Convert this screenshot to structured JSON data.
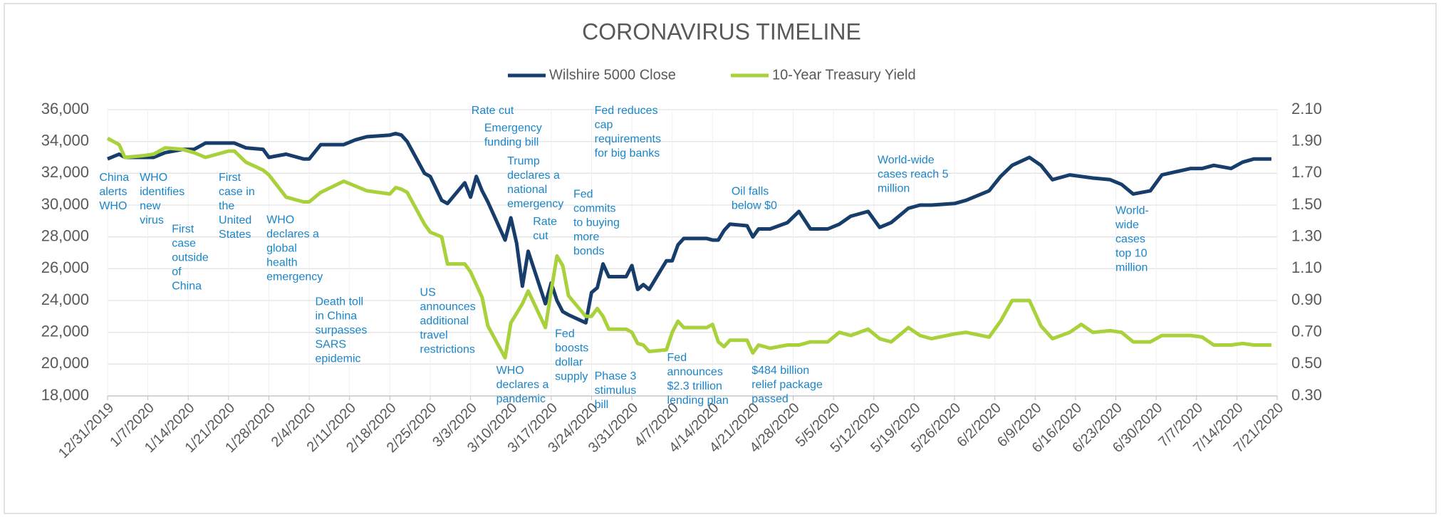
{
  "chart_data": {
    "type": "line",
    "title": "CORONAVIRUS TIMELINE",
    "legend": "top",
    "grid": true,
    "x": [
      "12/31/2019",
      "1/2/2020",
      "1/3/2020",
      "1/6/2020",
      "1/8/2020",
      "1/10/2020",
      "1/13/2020",
      "1/15/2020",
      "1/17/2020",
      "1/21/2020",
      "1/22/2020",
      "1/24/2020",
      "1/27/2020",
      "1/28/2020",
      "1/31/2020",
      "2/3/2020",
      "2/4/2020",
      "2/6/2020",
      "2/10/2020",
      "2/12/2020",
      "2/14/2020",
      "2/18/2020",
      "2/19/2020",
      "2/20/2020",
      "2/21/2020",
      "2/24/2020",
      "2/25/2020",
      "2/27/2020",
      "2/28/2020",
      "3/2/2020",
      "3/3/2020",
      "3/4/2020",
      "3/5/2020",
      "3/6/2020",
      "3/9/2020",
      "3/10/2020",
      "3/11/2020",
      "3/12/2020",
      "3/13/2020",
      "3/16/2020",
      "3/17/2020",
      "3/18/2020",
      "3/19/2020",
      "3/20/2020",
      "3/23/2020",
      "3/24/2020",
      "3/25/2020",
      "3/26/2020",
      "3/27/2020",
      "3/30/2020",
      "3/31/2020",
      "4/1/2020",
      "4/2/2020",
      "4/3/2020",
      "4/6/2020",
      "4/7/2020",
      "4/8/2020",
      "4/9/2020",
      "4/13/2020",
      "4/14/2020",
      "4/15/2020",
      "4/16/2020",
      "4/17/2020",
      "4/20/2020",
      "4/21/2020",
      "4/22/2020",
      "4/24/2020",
      "4/27/2020",
      "4/29/2020",
      "5/1/2020",
      "5/4/2020",
      "5/6/2020",
      "5/8/2020",
      "5/11/2020",
      "5/13/2020",
      "5/15/2020",
      "5/18/2020",
      "5/20/2020",
      "5/22/2020",
      "5/26/2020",
      "5/28/2020",
      "6/1/2020",
      "6/3/2020",
      "6/5/2020",
      "6/8/2020",
      "6/10/2020",
      "6/12/2020",
      "6/15/2020",
      "6/17/2020",
      "6/19/2020",
      "6/22/2020",
      "6/24/2020",
      "6/26/2020",
      "6/29/2020",
      "7/1/2020",
      "7/6/2020",
      "7/8/2020",
      "7/10/2020",
      "7/13/2020",
      "7/15/2020",
      "7/17/2020",
      "7/20/2020"
    ],
    "xlim": [
      "12/31/2019",
      "7/21/2020"
    ],
    "xticks": [
      "12/31/2019",
      "1/7/2020",
      "1/14/2020",
      "1/21/2020",
      "1/28/2020",
      "2/4/2020",
      "2/11/2020",
      "2/18/2020",
      "2/25/2020",
      "3/3/2020",
      "3/10/2020",
      "3/17/2020",
      "3/24/2020",
      "3/31/2020",
      "4/7/2020",
      "4/14/2020",
      "4/21/2020",
      "4/28/2020",
      "5/5/2020",
      "5/12/2020",
      "5/19/2020",
      "5/26/2020",
      "6/2/2020",
      "6/9/2020",
      "6/16/2020",
      "6/23/2020",
      "6/30/2020",
      "7/7/2020",
      "7/14/2020",
      "7/21/2020"
    ],
    "ylim": [
      18000,
      36000
    ],
    "yticks": [
      {
        "value": 18000,
        "label": "18,000"
      },
      {
        "value": 20000,
        "label": "20,000"
      },
      {
        "value": 22000,
        "label": "22,000"
      },
      {
        "value": 24000,
        "label": "24,000"
      },
      {
        "value": 26000,
        "label": "26,000"
      },
      {
        "value": 28000,
        "label": "28,000"
      },
      {
        "value": 30000,
        "label": "30,000"
      },
      {
        "value": 32000,
        "label": "32,000"
      },
      {
        "value": 34000,
        "label": "34,000"
      },
      {
        "value": 36000,
        "label": "36,000"
      }
    ],
    "y2lim": [
      0.3,
      2.1
    ],
    "y2ticks": [
      {
        "value": 0.3,
        "label": "0.30"
      },
      {
        "value": 0.5,
        "label": "0.50"
      },
      {
        "value": 0.7,
        "label": "0.70"
      },
      {
        "value": 0.9,
        "label": "0.90"
      },
      {
        "value": 1.1,
        "label": "1.10"
      },
      {
        "value": 1.3,
        "label": "1.30"
      },
      {
        "value": 1.5,
        "label": "1.50"
      },
      {
        "value": 1.7,
        "label": "1.70"
      },
      {
        "value": 1.9,
        "label": "1.90"
      },
      {
        "value": 2.1,
        "label": "2.10"
      }
    ],
    "series": [
      {
        "name": "Wilshire 5000 Close",
        "color": "#173d6b",
        "values": [
          32900,
          33200,
          33000,
          33000,
          33000,
          33300,
          33500,
          33500,
          33900,
          33900,
          33900,
          33600,
          33500,
          33000,
          33200,
          32900,
          32900,
          33800,
          33800,
          34100,
          34300,
          34400,
          34500,
          34400,
          34000,
          32000,
          31800,
          30300,
          30100,
          31400,
          30500,
          31800,
          30900,
          30200,
          27800,
          29200,
          27600,
          24900,
          27100,
          23800,
          25100,
          24000,
          23300,
          23100,
          22600,
          24500,
          24800,
          26300,
          25500,
          25500,
          26200,
          24700,
          25000,
          24700,
          26500,
          26500,
          27500,
          27900,
          27900,
          27800,
          27800,
          28400,
          28800,
          28700,
          28000,
          28500,
          28500,
          28900,
          29600,
          28500,
          28500,
          28800,
          29300,
          29600,
          28600,
          28900,
          29800,
          30000,
          30000,
          30100,
          30300,
          30900,
          31800,
          32500,
          33000,
          32500,
          31600,
          31900,
          31800,
          31700,
          31600,
          31300,
          30700,
          30900,
          31900,
          32300,
          32300,
          32500,
          32300,
          32700,
          32900,
          32900
        ]
      },
      {
        "name": "10-Year Treasury Yield",
        "color": "#a9d13b",
        "axis": "y2",
        "values": [
          1.92,
          1.88,
          1.8,
          1.81,
          1.82,
          1.86,
          1.85,
          1.83,
          1.8,
          1.84,
          1.84,
          1.77,
          1.72,
          1.69,
          1.55,
          1.52,
          1.52,
          1.58,
          1.65,
          1.62,
          1.59,
          1.57,
          1.61,
          1.6,
          1.58,
          1.38,
          1.33,
          1.3,
          1.13,
          1.13,
          1.08,
          1.0,
          0.92,
          0.74,
          0.54,
          0.76,
          0.82,
          0.88,
          0.96,
          0.73,
          0.96,
          1.18,
          1.12,
          0.93,
          0.8,
          0.8,
          0.85,
          0.8,
          0.72,
          0.72,
          0.7,
          0.63,
          0.62,
          0.58,
          0.59,
          0.7,
          0.77,
          0.73,
          0.73,
          0.75,
          0.64,
          0.61,
          0.65,
          0.65,
          0.57,
          0.62,
          0.6,
          0.62,
          0.62,
          0.64,
          0.64,
          0.7,
          0.68,
          0.72,
          0.66,
          0.64,
          0.73,
          0.68,
          0.66,
          0.69,
          0.7,
          0.67,
          0.77,
          0.9,
          0.9,
          0.74,
          0.66,
          0.7,
          0.75,
          0.7,
          0.71,
          0.7,
          0.64,
          0.64,
          0.68,
          0.68,
          0.67,
          0.62,
          0.62,
          0.63,
          0.62,
          0.62
        ]
      }
    ],
    "annotations": [
      [
        "China",
        "alerts",
        "WHO"
      ],
      [
        "WHO",
        "identifies",
        "new",
        "virus"
      ],
      [
        "First",
        "case",
        "outside",
        "of",
        "China"
      ],
      [
        "First",
        "case in",
        "the",
        "United",
        "States"
      ],
      [
        "WHO",
        "declares a",
        "global",
        "health",
        "emergency"
      ],
      [
        "Death toll",
        "in China",
        "surpasses",
        "SARS",
        "epidemic"
      ],
      [
        "US",
        "announces",
        "additional",
        "travel",
        "restrictions"
      ],
      [
        "Rate cut"
      ],
      [
        "Emergency",
        "funding bill"
      ],
      [
        "Trump",
        "declares a",
        "national",
        "emergency"
      ],
      [
        "Rate",
        "cut"
      ],
      [
        "WHO",
        "declares a",
        "pandemic"
      ],
      [
        "Fed",
        "boosts",
        "dollar",
        "supply"
      ],
      [
        "Fed",
        "commits",
        "to buying",
        "more",
        "bonds"
      ],
      [
        "Phase 3",
        "stimulus",
        "bill"
      ],
      [
        "Fed reduces",
        "cap",
        "requirements",
        "for big banks"
      ],
      [
        "Fed",
        "announces",
        "$2.3 trillion",
        "lending plan"
      ],
      [
        "Oil falls",
        "below $0"
      ],
      [
        "$484 billion",
        "relief package",
        "passed"
      ],
      [
        "World-wide",
        "cases reach 5",
        "million"
      ],
      [
        "World-",
        "wide",
        "cases",
        "top 10",
        "million"
      ]
    ]
  }
}
